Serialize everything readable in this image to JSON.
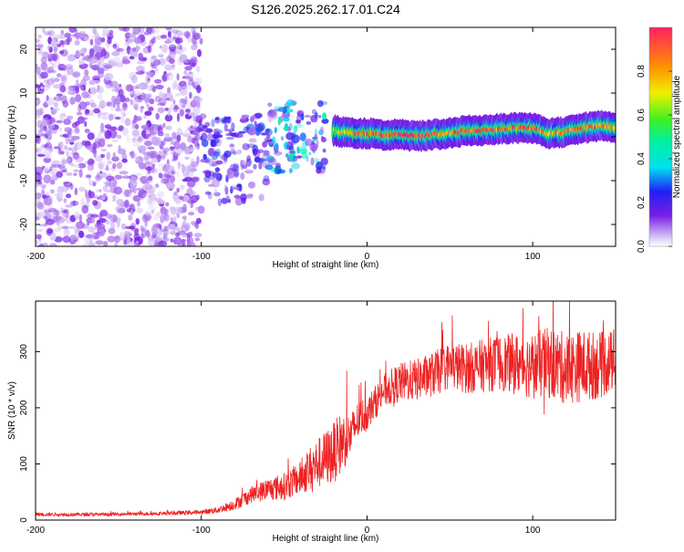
{
  "title": "S126.2025.262.17.01.C24",
  "colors": {
    "line": "#ee2222",
    "axis": "#000000",
    "spectro_low": "#cfb8f5",
    "spectro_mid": "#7a1ee6",
    "spectro_high": "#ff3030"
  },
  "chart_data": [
    {
      "type": "heatmap",
      "title": "S126.2025.262.17.01.C24",
      "xlabel": "Height of straight line (km)",
      "ylabel": "Frequency (Hz)",
      "xlim": [
        -200,
        150
      ],
      "ylim": [
        -25,
        25
      ],
      "xticks": [
        -200,
        -100,
        0,
        100
      ],
      "xtick_labels": [
        "-200",
        "-100",
        "0",
        "100"
      ],
      "yticks": [
        -20,
        -10,
        0,
        10,
        20
      ],
      "ytick_labels": [
        "-20",
        "-10",
        "0",
        "10",
        "20"
      ],
      "colorbar": {
        "label": "Normalized spectral amplitude",
        "range": [
          0.0,
          1.0
        ],
        "ticks": [
          0.0,
          0.2,
          0.4,
          0.6,
          0.8
        ],
        "tick_labels": [
          "0.0",
          "0.2",
          "0.4",
          "0.6",
          "0.8"
        ]
      },
      "ridge": {
        "x": [
          -20,
          -10,
          0,
          10,
          20,
          30,
          40,
          50,
          60,
          70,
          80,
          90,
          100,
          110,
          120,
          130,
          140,
          150
        ],
        "y": [
          1.5,
          0.8,
          0.8,
          0.5,
          0.5,
          0.2,
          0.5,
          0.8,
          1.5,
          1.5,
          1.8,
          2.0,
          2.0,
          0.8,
          1.2,
          2.0,
          2.5,
          2.2
        ],
        "amplitude": [
          0.6,
          0.8,
          0.9,
          0.9,
          0.95,
          0.95,
          0.9,
          0.85,
          0.9,
          0.9,
          0.85,
          0.9,
          0.9,
          0.8,
          0.85,
          0.9,
          0.85,
          0.8
        ]
      },
      "noise_regions": [
        {
          "x_range": [
            -200,
            -100
          ],
          "y_range": [
            -25,
            25
          ],
          "amplitude": 0.08
        },
        {
          "x_range": [
            -100,
            -60
          ],
          "y_range": [
            -15,
            5
          ],
          "amplitude": 0.15
        },
        {
          "x_range": [
            -60,
            -25
          ],
          "y_range": [
            -8,
            8
          ],
          "amplitude": 0.25
        }
      ]
    },
    {
      "type": "line",
      "xlabel": "Height of straight line (km)",
      "ylabel": "SNR (10 * v/v)",
      "xlim": [
        -200,
        150
      ],
      "ylim": [
        0,
        390
      ],
      "xticks": [
        -200,
        -100,
        0,
        100
      ],
      "xtick_labels": [
        "-200",
        "-100",
        "0",
        "100"
      ],
      "yticks": [
        0,
        100,
        200,
        300
      ],
      "ytick_labels": [
        "0",
        "100",
        "200",
        "300"
      ],
      "series": [
        {
          "name": "SNR",
          "x": [
            -200,
            -180,
            -160,
            -140,
            -120,
            -100,
            -90,
            -80,
            -70,
            -60,
            -50,
            -40,
            -35,
            -30,
            -25,
            -20,
            -15,
            -10,
            -5,
            0,
            10,
            20,
            30,
            40,
            50,
            60,
            70,
            80,
            90,
            100,
            110,
            120,
            130,
            140,
            150
          ],
          "mean": [
            10,
            10,
            10,
            11,
            12,
            14,
            18,
            28,
            45,
            55,
            60,
            75,
            90,
            100,
            110,
            120,
            140,
            150,
            180,
            190,
            230,
            245,
            250,
            260,
            275,
            270,
            275,
            280,
            278,
            275,
            280,
            270,
            275,
            275,
            285
          ],
          "spread": [
            6,
            6,
            6,
            6,
            7,
            8,
            12,
            20,
            30,
            40,
            50,
            60,
            80,
            90,
            100,
            110,
            110,
            80,
            70,
            60,
            60,
            70,
            75,
            80,
            85,
            90,
            95,
            100,
            110,
            120,
            130,
            130,
            130,
            120,
            110
          ]
        }
      ]
    }
  ]
}
